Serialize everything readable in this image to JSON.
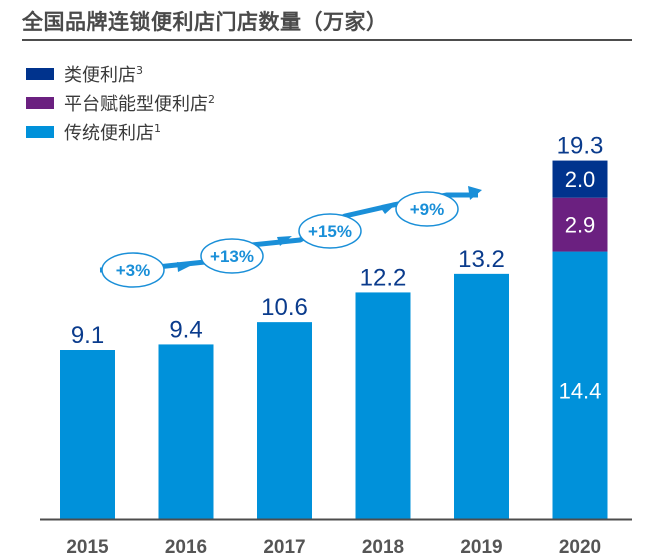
{
  "chart_data": {
    "type": "bar",
    "stacked": true,
    "title": "全国品牌连锁便利店门店数量（万家）",
    "xlabel": "",
    "ylabel": "",
    "categories": [
      "2015",
      "2016",
      "2017",
      "2018",
      "2019",
      "2020"
    ],
    "series": [
      {
        "name": "传统便利店",
        "sup": "1",
        "color": "#0091da",
        "values": [
          9.1,
          9.4,
          10.6,
          12.2,
          13.2,
          14.4
        ]
      },
      {
        "name": "平台赋能型便利店",
        "sup": "2",
        "color": "#6b2080",
        "values": [
          0,
          0,
          0,
          0,
          0,
          2.9
        ]
      },
      {
        "name": "类便利店",
        "sup": "3",
        "color": "#00338d",
        "values": [
          0,
          0,
          0,
          0,
          0,
          2.0
        ]
      }
    ],
    "totals": [
      "9.1",
      "9.4",
      "10.6",
      "12.2",
      "13.2",
      "19.3"
    ],
    "inner_labels": {
      "2020": [
        "14.4",
        "2.9",
        "2.0"
      ]
    },
    "growth_annotations": [
      "+3%",
      "+13%",
      "+15%",
      "+9%"
    ],
    "ylim": [
      0,
      19.3
    ],
    "grid": false,
    "legend_position": "top-left"
  },
  "legend": [
    {
      "label": "类便利店",
      "sup": "3",
      "color": "#00338d"
    },
    {
      "label": "平台赋能型便利店",
      "sup": "2",
      "color": "#6b2080"
    },
    {
      "label": "传统便利店",
      "sup": "1",
      "color": "#0091da"
    }
  ]
}
